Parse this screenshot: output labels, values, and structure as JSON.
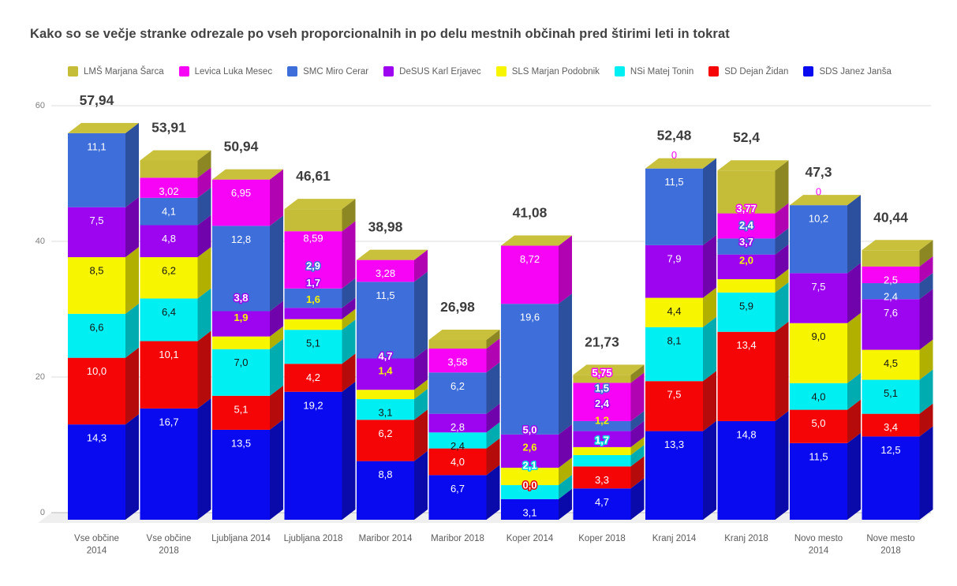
{
  "title": "Kako so se večje stranke odrezale po vseh proporcionalnih in po delu mestnih občinah pred štirimi leti in tokrat",
  "axis": {
    "y_ticks": [
      "0",
      "20",
      "40",
      "60"
    ]
  },
  "chart_data": {
    "type": "bar",
    "subtype": "3d-stacked-column",
    "ylim": [
      0,
      60
    ],
    "gridlines": [
      0,
      20,
      40,
      60
    ],
    "legend_position": "top",
    "grid": true,
    "cap_color": "#c9c13b",
    "parties": {
      "LMS": {
        "label": "LMŠ Marjana Šarca",
        "color": "#c5bd37",
        "side": "#8d8723"
      },
      "Levica": {
        "label": "Levica Luka Mesec",
        "color": "#f704f7",
        "side": "#b203b2"
      },
      "SMC": {
        "label": "SMC Miro Cerar",
        "color": "#3e6ed9",
        "side": "#2c4f9e"
      },
      "DeSUS": {
        "label": "DeSUS Karl Erjavec",
        "color": "#9d05f0",
        "side": "#7003ac"
      },
      "SLS": {
        "label": "SLS Marjan Podobnik",
        "color": "#f7f500",
        "side": "#b1b000"
      },
      "NSi": {
        "label": "NSi Matej Tonin",
        "color": "#00eff2",
        "side": "#00acb0"
      },
      "SD": {
        "label": "SD Dejan Židan",
        "color": "#f50505",
        "side": "#b50b0b"
      },
      "SDS": {
        "label": "SDS Janez Janša",
        "color": "#0a0af0",
        "side": "#0a0aaa"
      }
    },
    "legend_order": [
      "LMS",
      "Levica",
      "SMC",
      "DeSUS",
      "SLS",
      "NSi",
      "SD",
      "SDS"
    ],
    "stack_order": [
      "SDS",
      "SD",
      "NSi",
      "SLS",
      "DeSUS",
      "SMC",
      "Levica",
      "LMS"
    ],
    "bars": [
      {
        "category": [
          "Vse občine",
          "2014"
        ],
        "total": "57,94",
        "segments": [
          {
            "p": "SDS",
            "v": 14.3,
            "t": "14,3",
            "s": "lw"
          },
          {
            "p": "SD",
            "v": 10.0,
            "t": "10,0",
            "s": "lw"
          },
          {
            "p": "NSi",
            "v": 6.6,
            "t": "6,6",
            "s": "lk"
          },
          {
            "p": "SLS",
            "v": 8.5,
            "t": "8,5",
            "s": "lk"
          },
          {
            "p": "DeSUS",
            "v": 7.5,
            "t": "7,5",
            "s": "lw"
          },
          {
            "p": "SMC",
            "v": 11.1,
            "t": "11,1",
            "s": "lw"
          },
          {
            "p": "Levica",
            "v": 0,
            "t": "",
            "s": "lw"
          },
          {
            "p": "LMS",
            "v": 0,
            "t": "",
            "s": "lw"
          }
        ]
      },
      {
        "category": [
          "Vse občine",
          "2018"
        ],
        "total": "53,91",
        "segments": [
          {
            "p": "SDS",
            "v": 16.7,
            "t": "16,7",
            "s": "lw"
          },
          {
            "p": "SD",
            "v": 10.1,
            "t": "10,1",
            "s": "lw"
          },
          {
            "p": "NSi",
            "v": 6.4,
            "t": "6,4",
            "s": "lk"
          },
          {
            "p": "SLS",
            "v": 6.2,
            "t": "6,2",
            "s": "lk"
          },
          {
            "p": "DeSUS",
            "v": 4.8,
            "t": "4,8",
            "s": "lw"
          },
          {
            "p": "SMC",
            "v": 4.1,
            "t": "4,1",
            "s": "lw"
          },
          {
            "p": "Levica",
            "v": 3.02,
            "t": "3,02",
            "s": "lw"
          },
          {
            "p": "LMS",
            "v": 2.59,
            "t": "",
            "s": "lw"
          }
        ]
      },
      {
        "category": [
          "Ljubljana 2014"
        ],
        "total": "50,94",
        "segments": [
          {
            "p": "SDS",
            "v": 13.5,
            "t": "13,5",
            "s": "lw"
          },
          {
            "p": "SD",
            "v": 5.1,
            "t": "5,1",
            "s": "lw"
          },
          {
            "p": "NSi",
            "v": 7.0,
            "t": "7,0",
            "s": "lk"
          },
          {
            "p": "SLS",
            "v": 1.9,
            "t": "1,9",
            "s": "ly",
            "dy": 41
          },
          {
            "p": "DeSUS",
            "v": 3.8,
            "t": "3,8",
            "s": "oP",
            "dy": 34
          },
          {
            "p": "SMC",
            "v": 12.8,
            "t": "12,8",
            "s": "lw"
          },
          {
            "p": "Levica",
            "v": 6.95,
            "t": "6,95",
            "s": "lw"
          },
          {
            "p": "LMS",
            "v": 0,
            "t": "",
            "s": "lw"
          }
        ]
      },
      {
        "category": [
          "Ljubljana 2018"
        ],
        "total": "46,61",
        "segments": [
          {
            "p": "SDS",
            "v": 19.2,
            "t": "19,2",
            "s": "lw"
          },
          {
            "p": "SD",
            "v": 4.2,
            "t": "4,2",
            "s": "lw"
          },
          {
            "p": "NSi",
            "v": 5.1,
            "t": "5,1",
            "s": "lk"
          },
          {
            "p": "SLS",
            "v": 1.6,
            "t": "1,6",
            "s": "ly",
            "dy": 42
          },
          {
            "p": "DeSUS",
            "v": 1.7,
            "t": "1,7",
            "s": "oP",
            "dy": 49
          },
          {
            "p": "SMC",
            "v": 2.9,
            "t": "2,9",
            "s": "oB",
            "dy": 46
          },
          {
            "p": "Levica",
            "v": 8.59,
            "t": "8,59",
            "s": "lw",
            "dy": 8
          },
          {
            "p": "LMS",
            "v": 3.32,
            "t": "",
            "s": "lw"
          }
        ]
      },
      {
        "category": [
          "Maribor 2014"
        ],
        "total": "38,98",
        "segments": [
          {
            "p": "SDS",
            "v": 8.8,
            "t": "8,8",
            "s": "lw"
          },
          {
            "p": "SD",
            "v": 6.2,
            "t": "6,2",
            "s": "lw"
          },
          {
            "p": "NSi",
            "v": 3.1,
            "t": "3,1",
            "s": "lk"
          },
          {
            "p": "SLS",
            "v": 1.4,
            "t": "1,4",
            "s": "ly",
            "dy": 41
          },
          {
            "p": "DeSUS",
            "v": 4.7,
            "t": "4,7",
            "s": "oP",
            "dy": 20
          },
          {
            "p": "SMC",
            "v": 11.5,
            "t": "11,5",
            "s": "lw"
          },
          {
            "p": "Levica",
            "v": 3.28,
            "t": "3,28",
            "s": "lw"
          },
          {
            "p": "LMS",
            "v": 0,
            "t": "",
            "s": "lw"
          }
        ]
      },
      {
        "category": [
          "Maribor 2018"
        ],
        "total": "26,98",
        "segments": [
          {
            "p": "SDS",
            "v": 6.7,
            "t": "6,7",
            "s": "lw"
          },
          {
            "p": "SD",
            "v": 4.0,
            "t": "4,0",
            "s": "lw"
          },
          {
            "p": "NSi",
            "v": 2.4,
            "t": "2,4",
            "s": "lk"
          },
          {
            "p": "SLS",
            "v": 0,
            "t": "",
            "s": "ly"
          },
          {
            "p": "DeSUS",
            "v": 2.8,
            "t": "2,8",
            "s": "lw"
          },
          {
            "p": "SMC",
            "v": 6.2,
            "t": "6,2",
            "s": "lw"
          },
          {
            "p": "Levica",
            "v": 3.58,
            "t": "3,58",
            "s": "lw"
          },
          {
            "p": "LMS",
            "v": 1.3,
            "t": "",
            "s": "lw"
          }
        ]
      },
      {
        "category": [
          "Koper 2014"
        ],
        "total": "41,08",
        "segments": [
          {
            "p": "SDS",
            "v": 3.1,
            "t": "3,1",
            "s": "lw"
          },
          {
            "p": "SD",
            "v": 0,
            "t": "0,0",
            "s": "oR",
            "dy": 35
          },
          {
            "p": "NSi",
            "v": 2.1,
            "t": "2,1",
            "s": "oC",
            "dy": 42
          },
          {
            "p": "SLS",
            "v": 2.6,
            "t": "2,6",
            "s": "ly",
            "dy": 43
          },
          {
            "p": "DeSUS",
            "v": 5.0,
            "t": "5,0",
            "s": "oP",
            "dy": 23
          },
          {
            "p": "SMC",
            "v": 19.6,
            "t": "19,6",
            "s": "lw"
          },
          {
            "p": "Levica",
            "v": 8.72,
            "t": "8,72",
            "s": "lw"
          },
          {
            "p": "LMS",
            "v": 0,
            "t": "",
            "s": "lw"
          }
        ]
      },
      {
        "category": [
          "Koper 2018"
        ],
        "total": "21,73",
        "segments": [
          {
            "p": "SDS",
            "v": 4.7,
            "t": "4,7",
            "s": "lw"
          },
          {
            "p": "SD",
            "v": 3.3,
            "t": "3,3",
            "s": "lw"
          },
          {
            "p": "NSi",
            "v": 1.7,
            "t": "1,7",
            "s": "oC",
            "dy": 36
          },
          {
            "p": "SLS",
            "v": 1.2,
            "t": "1,2",
            "s": "ly",
            "dy": 51
          },
          {
            "p": "DeSUS",
            "v": 2.4,
            "t": "2,4",
            "s": "oP",
            "dy": 52
          },
          {
            "p": "SMC",
            "v": 1.5,
            "t": "1,5",
            "s": "oB",
            "dy": 59
          },
          {
            "p": "Levica",
            "v": 5.75,
            "t": "5,75",
            "s": "oM",
            "dy": 30
          },
          {
            "p": "LMS",
            "v": 1.18,
            "t": "",
            "s": "lw"
          }
        ]
      },
      {
        "category": [
          "Kranj 2014"
        ],
        "total": "52,48",
        "segments": [
          {
            "p": "SDS",
            "v": 13.3,
            "t": "13,3",
            "s": "lw"
          },
          {
            "p": "SD",
            "v": 7.5,
            "t": "7,5",
            "s": "lw"
          },
          {
            "p": "NSi",
            "v": 8.1,
            "t": "8,1",
            "s": "lk"
          },
          {
            "p": "SLS",
            "v": 4.4,
            "t": "4,4",
            "s": "lk"
          },
          {
            "p": "DeSUS",
            "v": 7.9,
            "t": "7,9",
            "s": "lw"
          },
          {
            "p": "SMC",
            "v": 11.5,
            "t": "11,5",
            "s": "lw"
          },
          {
            "p": "Levica",
            "v": 0,
            "t": "0",
            "s": "lm",
            "dy": 34
          },
          {
            "p": "LMS",
            "v": 0,
            "t": "",
            "s": "lw"
          }
        ]
      },
      {
        "category": [
          "Kranj 2018"
        ],
        "total": "52,4",
        "segments": [
          {
            "p": "SDS",
            "v": 14.8,
            "t": "14,8",
            "s": "lw"
          },
          {
            "p": "SD",
            "v": 13.4,
            "t": "13,4",
            "s": "lw"
          },
          {
            "p": "NSi",
            "v": 5.9,
            "t": "5,9",
            "s": "lk"
          },
          {
            "p": "SLS",
            "v": 2.0,
            "t": "2,0",
            "s": "ly",
            "dy": 41
          },
          {
            "p": "DeSUS",
            "v": 3.7,
            "t": "3,7",
            "s": "oP",
            "dy": 33
          },
          {
            "p": "SMC",
            "v": 2.4,
            "t": "2,4",
            "s": "oB",
            "dy": 34
          },
          {
            "p": "Levica",
            "v": 3.77,
            "t": "3,77",
            "s": "oM",
            "dy": 23
          },
          {
            "p": "LMS",
            "v": 6.43,
            "t": "",
            "s": "lw"
          }
        ]
      },
      {
        "category": [
          "Novo mesto",
          "2014"
        ],
        "total": "47,3",
        "segments": [
          {
            "p": "SDS",
            "v": 11.5,
            "t": "11,5",
            "s": "lw"
          },
          {
            "p": "SD",
            "v": 5.0,
            "t": "5,0",
            "s": "lw"
          },
          {
            "p": "NSi",
            "v": 4.0,
            "t": "4,0",
            "s": "lk"
          },
          {
            "p": "SLS",
            "v": 9.0,
            "t": "9,0",
            "s": "lk"
          },
          {
            "p": "DeSUS",
            "v": 7.5,
            "t": "7,5",
            "s": "lw"
          },
          {
            "p": "SMC",
            "v": 10.2,
            "t": "10,2",
            "s": "lw"
          },
          {
            "p": "Levica",
            "v": 0,
            "t": "0",
            "s": "lm",
            "dy": 34
          },
          {
            "p": "LMS",
            "v": 0,
            "t": "",
            "s": "lw"
          }
        ]
      },
      {
        "category": [
          "Nove mesto",
          "2018"
        ],
        "total": "40,44",
        "segments": [
          {
            "p": "SDS",
            "v": 12.5,
            "t": "12,5",
            "s": "lw"
          },
          {
            "p": "SD",
            "v": 3.4,
            "t": "3,4",
            "s": "lw"
          },
          {
            "p": "NSi",
            "v": 5.1,
            "t": "5,1",
            "s": "lk"
          },
          {
            "p": "SLS",
            "v": 4.5,
            "t": "4,5",
            "s": "lk"
          },
          {
            "p": "DeSUS",
            "v": 7.6,
            "t": "7,6",
            "s": "lw"
          },
          {
            "p": "SMC",
            "v": 2.4,
            "t": "2,4",
            "s": "lw"
          },
          {
            "p": "Levica",
            "v": 2.5,
            "t": "2,5",
            "s": "lw"
          },
          {
            "p": "LMS",
            "v": 2.44,
            "t": "",
            "s": "lw"
          }
        ]
      }
    ]
  }
}
